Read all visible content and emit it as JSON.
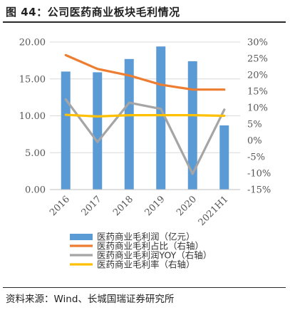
{
  "header": {
    "title": "图 44：公司医药商业板块毛利情况"
  },
  "footer": {
    "source": "资料来源：Wind、长城国瑞证券研究所"
  },
  "chart_data": {
    "type": "bar",
    "categories": [
      "2016",
      "2017",
      "2018",
      "2019",
      "2020",
      "2021H1"
    ],
    "left_axis": {
      "ylim": [
        0,
        20
      ],
      "ticks": [
        "0.00",
        "5.00",
        "10.00",
        "15.00",
        "20.00"
      ]
    },
    "right_axis": {
      "ylim": [
        -15,
        30
      ],
      "ticks": [
        "-15%",
        "-10%",
        "-5%",
        "0%",
        "5%",
        "10%",
        "15%",
        "20%",
        "25%",
        "30%"
      ]
    },
    "grid": true,
    "legend_position": "bottom",
    "series": [
      {
        "name": "医药商业毛利润（亿元）",
        "type": "bar",
        "axis": "left",
        "color": "#5b9bd5",
        "values": [
          16.0,
          15.9,
          17.7,
          19.4,
          17.4,
          8.7
        ]
      },
      {
        "name": "医药商业毛利占比（右轴）",
        "type": "line",
        "axis": "right",
        "color": "#ed7d31",
        "values": [
          26.0,
          21.8,
          19.8,
          17.0,
          15.5,
          15.5
        ]
      },
      {
        "name": "医药商业毛利润YOY（右轴）",
        "type": "line",
        "axis": "right",
        "color": "#a5a5a5",
        "values": [
          12.5,
          -0.5,
          11.5,
          9.6,
          -10.2,
          9.4
        ]
      },
      {
        "name": "医药商业毛利率（右轴）",
        "type": "line",
        "axis": "right",
        "color": "#ffc000",
        "values": [
          7.8,
          7.3,
          7.7,
          7.7,
          7.7,
          7.5
        ]
      }
    ]
  }
}
